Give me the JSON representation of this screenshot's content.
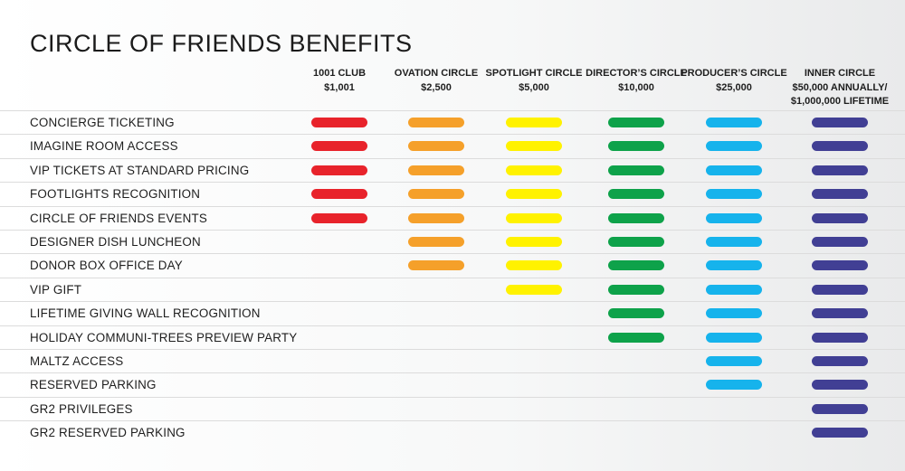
{
  "title": "CIRCLE OF FRIENDS BENEFITS",
  "tiers": [
    {
      "name": "1001 CLUB",
      "amount": "$1,001",
      "amount2": "",
      "color": "#e8232b"
    },
    {
      "name": "OVATION CIRCLE",
      "amount": "$2,500",
      "amount2": "",
      "color": "#f5a02a"
    },
    {
      "name": "SPOTLIGHT CIRCLE",
      "amount": "$5,000",
      "amount2": "",
      "color": "#fff200"
    },
    {
      "name": "DIRECTOR’S CIRCLE",
      "amount": "$10,000",
      "amount2": "",
      "color": "#0ea24a"
    },
    {
      "name": "PRODUCER’S CIRCLE",
      "amount": "$25,000",
      "amount2": "",
      "color": "#16b3ec"
    },
    {
      "name": "INNER CIRCLE",
      "amount": "$50,000 ANNUALLY/",
      "amount2": "$1,000,000 LIFETIME",
      "color": "#413f94"
    }
  ],
  "benefits": [
    {
      "label": "CONCIERGE TICKETING",
      "min_tier": 0
    },
    {
      "label": "IMAGINE ROOM ACCESS",
      "min_tier": 0
    },
    {
      "label": "VIP TICKETS AT STANDARD PRICING",
      "min_tier": 0
    },
    {
      "label": "FOOTLIGHTS RECOGNITION",
      "min_tier": 0
    },
    {
      "label": "CIRCLE OF FRIENDS EVENTS",
      "min_tier": 0
    },
    {
      "label": "DESIGNER DISH LUNCHEON",
      "min_tier": 1
    },
    {
      "label": "DONOR BOX OFFICE DAY",
      "min_tier": 1
    },
    {
      "label": "VIP GIFT",
      "min_tier": 2
    },
    {
      "label": "LIFETIME GIVING WALL RECOGNITION",
      "min_tier": 3
    },
    {
      "label": "HOLIDAY COMMUNI-TREES PREVIEW PARTY",
      "min_tier": 3
    },
    {
      "label": "MALTZ ACCESS",
      "min_tier": 4
    },
    {
      "label": "RESERVED PARKING",
      "min_tier": 4
    },
    {
      "label": "GR2 PRIVILEGES",
      "min_tier": 5
    },
    {
      "label": "GR2 RESERVED PARKING",
      "min_tier": 5
    }
  ]
}
